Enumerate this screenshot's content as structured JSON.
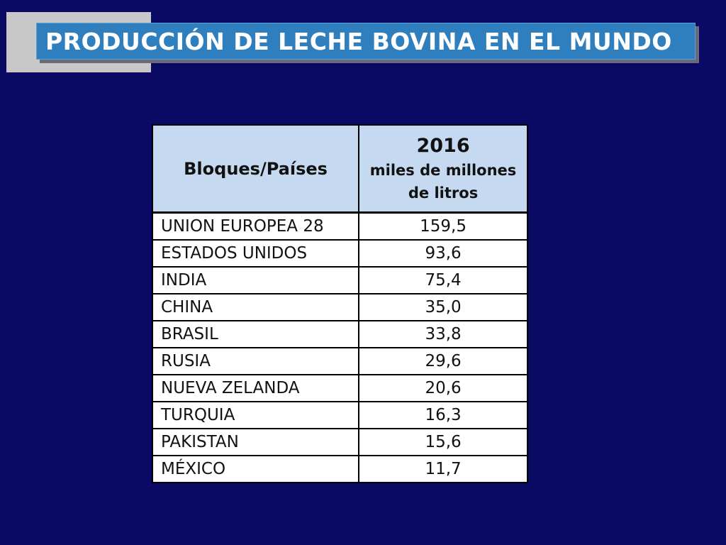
{
  "slide": {
    "title": "PRODUCCIÓN DE LECHE BOVINA EN EL MUNDO"
  },
  "table": {
    "header": {
      "country": "Bloques/Países",
      "year": "2016",
      "unit": "miles de millones de litros"
    },
    "rows": [
      {
        "country": "UNION EUROPEA 28",
        "value": "159,5"
      },
      {
        "country": "ESTADOS UNIDOS",
        "value": "93,6"
      },
      {
        "country": "INDIA",
        "value": "75,4"
      },
      {
        "country": "CHINA",
        "value": "35,0"
      },
      {
        "country": "BRASIL",
        "value": "33,8"
      },
      {
        "country": "RUSIA",
        "value": "29,6"
      },
      {
        "country": "NUEVA ZELANDA",
        "value": "20,6"
      },
      {
        "country": "TURQUIA",
        "value": "16,3"
      },
      {
        "country": "PAKISTAN",
        "value": "15,6"
      },
      {
        "country": "MÉXICO",
        "value": "11,7"
      }
    ]
  },
  "colors": {
    "background": "#0a0a64",
    "title_bar": "#2f7fbf",
    "header_fill": "#c5d9f1",
    "accent_gray": "#c8c8c8"
  }
}
